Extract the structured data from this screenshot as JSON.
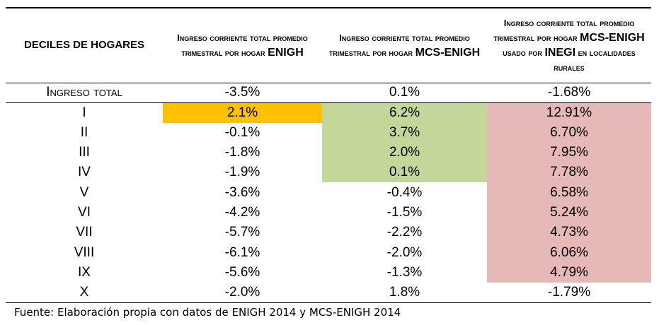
{
  "colors": {
    "orange": "#FFC000",
    "green": "#C4D79B",
    "pink": "#E6B8B7"
  },
  "headers": [
    {
      "pre": "DECILES DE HOGARES",
      "bold": ""
    },
    {
      "pre": "Ingreso corriente total promedio trimestral por hogar ",
      "bold": "ENIGH",
      "post": ""
    },
    {
      "pre": "Ingreso corriente total promedio trimestral por hogar ",
      "bold": "MCS-ENIGH",
      "post": ""
    },
    {
      "pre": "Ingreso corriente total promedio trimestral por hogar ",
      "bold": "MCS-ENIGH",
      "mid": " usado por ",
      "bold2": "INEGI",
      "post": " en localidades rurales"
    }
  ],
  "rows": [
    {
      "label": "Ingreso total",
      "v": [
        "-3.5%",
        "0.1%",
        "-1.68%"
      ],
      "hl": [
        "",
        "",
        ""
      ]
    },
    {
      "label": "I",
      "v": [
        "2.1%",
        "6.2%",
        "12.91%"
      ],
      "hl": [
        "orange",
        "green",
        "pink"
      ]
    },
    {
      "label": "II",
      "v": [
        "-0.1%",
        "3.7%",
        "6.70%"
      ],
      "hl": [
        "",
        "green",
        "pink"
      ]
    },
    {
      "label": "III",
      "v": [
        "-1.8%",
        "2.0%",
        "7.95%"
      ],
      "hl": [
        "",
        "green",
        "pink"
      ]
    },
    {
      "label": "IV",
      "v": [
        "-1.9%",
        "0.1%",
        "7.78%"
      ],
      "hl": [
        "",
        "green",
        "pink"
      ]
    },
    {
      "label": "V",
      "v": [
        "-3.6%",
        "-0.4%",
        "6.58%"
      ],
      "hl": [
        "",
        "",
        "pink"
      ]
    },
    {
      "label": "VI",
      "v": [
        "-4.2%",
        "-1.5%",
        "5.24%"
      ],
      "hl": [
        "",
        "",
        "pink"
      ]
    },
    {
      "label": "VII",
      "v": [
        "-5.7%",
        "-2.2%",
        "4.73%"
      ],
      "hl": [
        "",
        "",
        "pink"
      ]
    },
    {
      "label": "VIII",
      "v": [
        "-6.1%",
        "-2.0%",
        "6.06%"
      ],
      "hl": [
        "",
        "",
        "pink"
      ]
    },
    {
      "label": "IX",
      "v": [
        "-5.6%",
        "-1.3%",
        "4.79%"
      ],
      "hl": [
        "",
        "",
        "pink"
      ]
    },
    {
      "label": "X",
      "v": [
        "-2.0%",
        "1.8%",
        "-1.79%"
      ],
      "hl": [
        "",
        "",
        ""
      ]
    }
  ],
  "footer": "Fuente: Elaboración propia con datos de ENIGH 2014 y MCS-ENIGH 2014"
}
